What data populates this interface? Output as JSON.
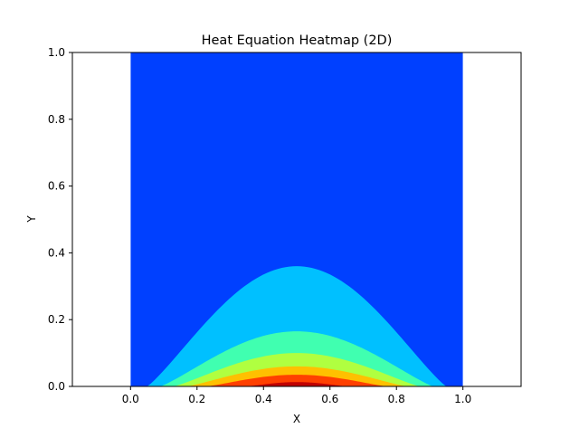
{
  "chart_data": {
    "type": "heatmap",
    "subtype": "filled-contour",
    "title": "Heat Equation Heatmap (2D)",
    "xlabel": "X",
    "ylabel": "Y",
    "xlim": [
      -0.175,
      1.175
    ],
    "ylim": [
      0.0,
      1.0
    ],
    "data_xlim": [
      0.0,
      1.0
    ],
    "data_ylim": [
      0.0,
      1.0
    ],
    "x_ticks": [
      "0.0",
      "0.2",
      "0.4",
      "0.6",
      "0.8",
      "1.0"
    ],
    "y_ticks": [
      "0.0",
      "0.2",
      "0.4",
      "0.6",
      "0.8",
      "1.0"
    ],
    "x_tick_values": [
      0.0,
      0.2,
      0.4,
      0.6,
      0.8,
      1.0
    ],
    "y_tick_values": [
      0.0,
      0.2,
      0.4,
      0.6,
      0.8,
      1.0
    ],
    "colormap": "jet",
    "grid": false,
    "background_color": "#0040ff",
    "contour_levels": [
      {
        "level": 1,
        "color": "#00c0ff",
        "peak_y": 0.36,
        "x_start": 0.05,
        "x_end": 0.95
      },
      {
        "level": 2,
        "color": "#40ffb0",
        "peak_y": 0.165,
        "x_start": 0.09,
        "x_end": 0.91
      },
      {
        "level": 3,
        "color": "#b0ff40",
        "peak_y": 0.1,
        "x_start": 0.13,
        "x_end": 0.87
      },
      {
        "level": 4,
        "color": "#ffc000",
        "peak_y": 0.06,
        "x_start": 0.17,
        "x_end": 0.83
      },
      {
        "level": 5,
        "color": "#ff4000",
        "peak_y": 0.035,
        "x_start": 0.23,
        "x_end": 0.77
      },
      {
        "level": 6,
        "color": "#c00000",
        "peak_y": 0.013,
        "x_start": 0.35,
        "x_end": 0.65
      }
    ]
  }
}
